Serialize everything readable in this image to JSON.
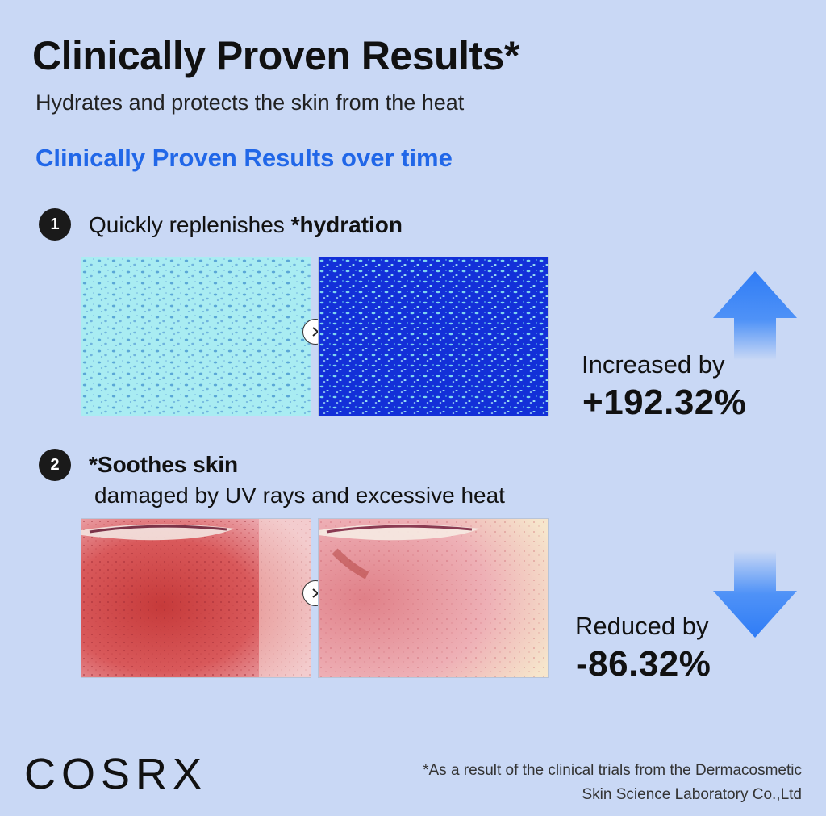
{
  "header": {
    "title": "Clinically Proven Results*",
    "subtitle": "Hydrates and protects the skin from the heat",
    "section_heading": "Clinically Proven Results over time"
  },
  "step1": {
    "number": "1",
    "text_plain": "Quickly replenishes ",
    "text_bold": "*hydration",
    "result_label": "Increased by",
    "result_value": "+192.32%",
    "arrow_icon": "arrow-up-icon",
    "next_icon": "chevron-right-icon"
  },
  "step2": {
    "number": "2",
    "text_bold": "*Soothes skin",
    "text_line2": "damaged by UV rays and excessive heat",
    "result_label": "Reduced by",
    "result_value": "-86.32%",
    "arrow_icon": "arrow-down-icon",
    "next_icon": "chevron-right-icon"
  },
  "footer": {
    "logo": "COSRX",
    "footnote_line1": "*As a result of the clinical trials from the Dermacosmetic",
    "footnote_line2": "Skin Science Laboratory Co.,Ltd"
  },
  "colors": {
    "background": "#c9d8f5",
    "accent_blue": "#2167e8",
    "arrow_blue": "#2f7cf6"
  }
}
